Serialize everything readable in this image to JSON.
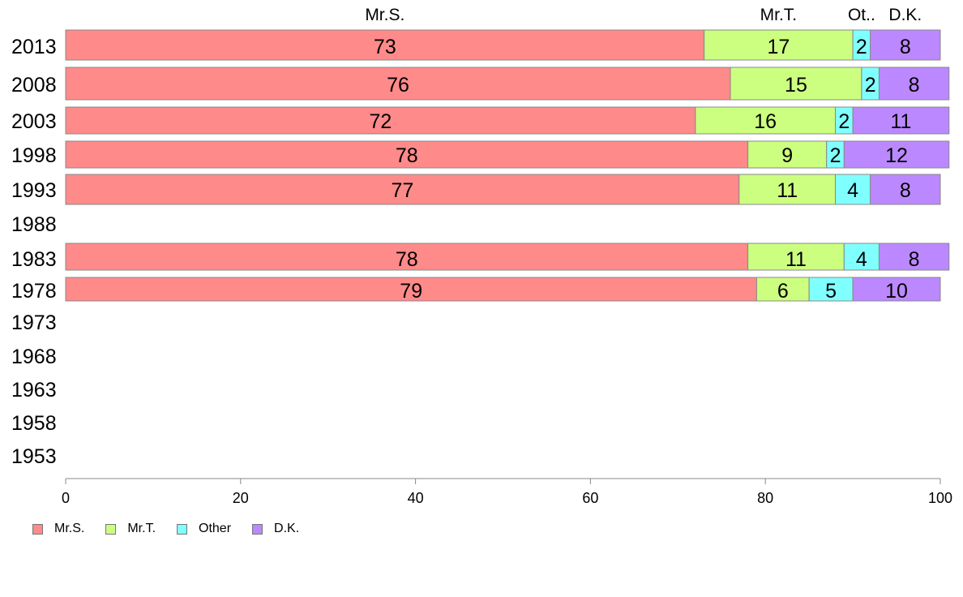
{
  "chart_data": {
    "type": "bar",
    "orientation": "horizontal",
    "stacked": true,
    "xlim": [
      0,
      100
    ],
    "x_ticks": [
      "0",
      "20",
      "40",
      "60",
      "80",
      "100"
    ],
    "grid": false,
    "legend_position": "bottom-left",
    "top_labels": [
      "Mr.S.",
      "Mr.T.",
      "Ot..",
      "D.K."
    ],
    "categories": [
      "2013",
      "2008",
      "2003",
      "1998",
      "1993",
      "1988",
      "1983",
      "1978",
      "1973",
      "1968",
      "1963",
      "1958",
      "1953"
    ],
    "series": [
      {
        "name": "Mr.S.",
        "color": "#ff8a8a",
        "values": [
          73,
          76,
          72,
          78,
          77,
          null,
          78,
          79,
          null,
          null,
          null,
          null,
          null
        ]
      },
      {
        "name": "Mr.T.",
        "color": "#ccff80",
        "values": [
          17,
          15,
          16,
          9,
          11,
          null,
          11,
          6,
          null,
          null,
          null,
          null,
          null
        ]
      },
      {
        "name": "Other",
        "color": "#80ffff",
        "values": [
          2,
          2,
          2,
          2,
          4,
          null,
          4,
          5,
          null,
          null,
          null,
          null,
          null
        ]
      },
      {
        "name": "D.K.",
        "color": "#bb88ff",
        "values": [
          8,
          8,
          11,
          12,
          8,
          null,
          8,
          10,
          null,
          null,
          null,
          null,
          null
        ]
      }
    ]
  }
}
